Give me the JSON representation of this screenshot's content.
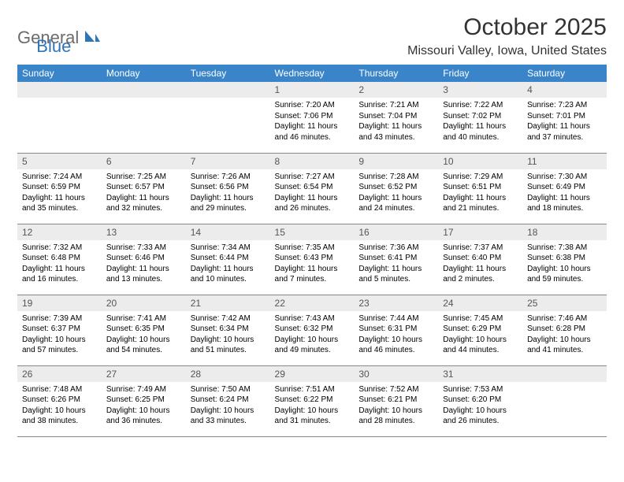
{
  "brand": {
    "general": "General",
    "blue": "Blue"
  },
  "title": "October 2025",
  "location": "Missouri Valley, Iowa, United States",
  "colors": {
    "header_bg": "#3a85c9",
    "header_text": "#ffffff",
    "daynum_bg": "#ececec",
    "daynum_text": "#555555",
    "rule": "#888888",
    "logo_gray": "#6c6c6c",
    "logo_blue": "#2e75b6"
  },
  "dayNames": [
    "Sunday",
    "Monday",
    "Tuesday",
    "Wednesday",
    "Thursday",
    "Friday",
    "Saturday"
  ],
  "weeks": [
    [
      null,
      null,
      null,
      {
        "d": "1",
        "r": "7:20 AM",
        "s": "7:06 PM",
        "dl": "11 hours and 46 minutes."
      },
      {
        "d": "2",
        "r": "7:21 AM",
        "s": "7:04 PM",
        "dl": "11 hours and 43 minutes."
      },
      {
        "d": "3",
        "r": "7:22 AM",
        "s": "7:02 PM",
        "dl": "11 hours and 40 minutes."
      },
      {
        "d": "4",
        "r": "7:23 AM",
        "s": "7:01 PM",
        "dl": "11 hours and 37 minutes."
      }
    ],
    [
      {
        "d": "5",
        "r": "7:24 AM",
        "s": "6:59 PM",
        "dl": "11 hours and 35 minutes."
      },
      {
        "d": "6",
        "r": "7:25 AM",
        "s": "6:57 PM",
        "dl": "11 hours and 32 minutes."
      },
      {
        "d": "7",
        "r": "7:26 AM",
        "s": "6:56 PM",
        "dl": "11 hours and 29 minutes."
      },
      {
        "d": "8",
        "r": "7:27 AM",
        "s": "6:54 PM",
        "dl": "11 hours and 26 minutes."
      },
      {
        "d": "9",
        "r": "7:28 AM",
        "s": "6:52 PM",
        "dl": "11 hours and 24 minutes."
      },
      {
        "d": "10",
        "r": "7:29 AM",
        "s": "6:51 PM",
        "dl": "11 hours and 21 minutes."
      },
      {
        "d": "11",
        "r": "7:30 AM",
        "s": "6:49 PM",
        "dl": "11 hours and 18 minutes."
      }
    ],
    [
      {
        "d": "12",
        "r": "7:32 AM",
        "s": "6:48 PM",
        "dl": "11 hours and 16 minutes."
      },
      {
        "d": "13",
        "r": "7:33 AM",
        "s": "6:46 PM",
        "dl": "11 hours and 13 minutes."
      },
      {
        "d": "14",
        "r": "7:34 AM",
        "s": "6:44 PM",
        "dl": "11 hours and 10 minutes."
      },
      {
        "d": "15",
        "r": "7:35 AM",
        "s": "6:43 PM",
        "dl": "11 hours and 7 minutes."
      },
      {
        "d": "16",
        "r": "7:36 AM",
        "s": "6:41 PM",
        "dl": "11 hours and 5 minutes."
      },
      {
        "d": "17",
        "r": "7:37 AM",
        "s": "6:40 PM",
        "dl": "11 hours and 2 minutes."
      },
      {
        "d": "18",
        "r": "7:38 AM",
        "s": "6:38 PM",
        "dl": "10 hours and 59 minutes."
      }
    ],
    [
      {
        "d": "19",
        "r": "7:39 AM",
        "s": "6:37 PM",
        "dl": "10 hours and 57 minutes."
      },
      {
        "d": "20",
        "r": "7:41 AM",
        "s": "6:35 PM",
        "dl": "10 hours and 54 minutes."
      },
      {
        "d": "21",
        "r": "7:42 AM",
        "s": "6:34 PM",
        "dl": "10 hours and 51 minutes."
      },
      {
        "d": "22",
        "r": "7:43 AM",
        "s": "6:32 PM",
        "dl": "10 hours and 49 minutes."
      },
      {
        "d": "23",
        "r": "7:44 AM",
        "s": "6:31 PM",
        "dl": "10 hours and 46 minutes."
      },
      {
        "d": "24",
        "r": "7:45 AM",
        "s": "6:29 PM",
        "dl": "10 hours and 44 minutes."
      },
      {
        "d": "25",
        "r": "7:46 AM",
        "s": "6:28 PM",
        "dl": "10 hours and 41 minutes."
      }
    ],
    [
      {
        "d": "26",
        "r": "7:48 AM",
        "s": "6:26 PM",
        "dl": "10 hours and 38 minutes."
      },
      {
        "d": "27",
        "r": "7:49 AM",
        "s": "6:25 PM",
        "dl": "10 hours and 36 minutes."
      },
      {
        "d": "28",
        "r": "7:50 AM",
        "s": "6:24 PM",
        "dl": "10 hours and 33 minutes."
      },
      {
        "d": "29",
        "r": "7:51 AM",
        "s": "6:22 PM",
        "dl": "10 hours and 31 minutes."
      },
      {
        "d": "30",
        "r": "7:52 AM",
        "s": "6:21 PM",
        "dl": "10 hours and 28 minutes."
      },
      {
        "d": "31",
        "r": "7:53 AM",
        "s": "6:20 PM",
        "dl": "10 hours and 26 minutes."
      },
      null
    ]
  ],
  "labels": {
    "sunrise": "Sunrise:",
    "sunset": "Sunset:",
    "daylight": "Daylight:"
  }
}
